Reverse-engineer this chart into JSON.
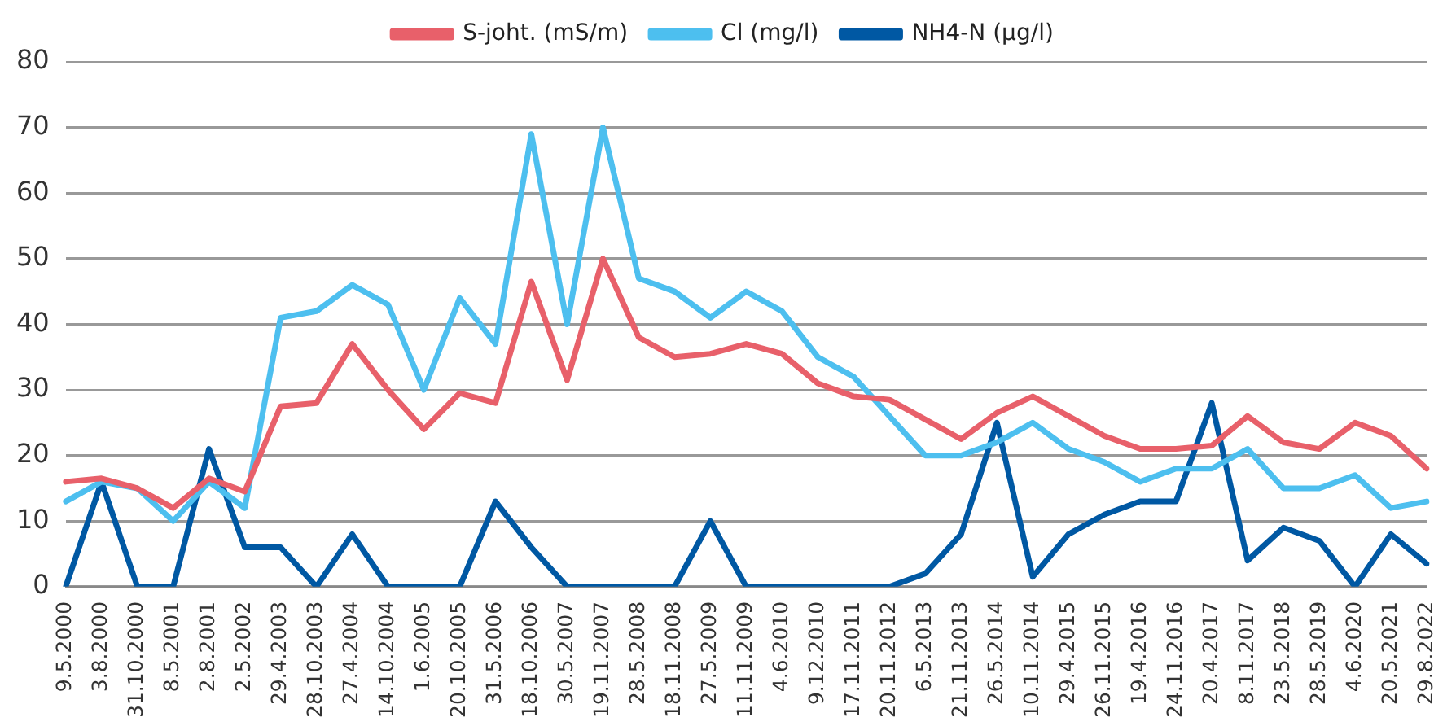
{
  "chart_data": {
    "type": "line",
    "categories": [
      "9.5.2000",
      "3.8.2000",
      "31.10.2000",
      "8.5.2001",
      "2.8.2001",
      "2.5.2002",
      "29.4.2003",
      "28.10.2003",
      "27.4.2004",
      "14.10.2004",
      "1.6.2005",
      "20.10.2005",
      "31.5.2006",
      "18.10.2006",
      "30.5.2007",
      "19.11.2007",
      "28.5.2008",
      "18.11.2008",
      "27.5.2009",
      "11.11.2009",
      "4.6.2010",
      "9.12.2010",
      "17.11.2011",
      "20.11.2012",
      "6.5.2013",
      "21.11.2013",
      "26.5.2014",
      "10.11.2014",
      "29.4.2015",
      "26.11.2015",
      "19.4.2016",
      "24.11.2016",
      "20.4.2017",
      "8.11.2017",
      "23.5.2018",
      "28.5.2019",
      "4.6.2020",
      "20.5.2021",
      "29.8.2022"
    ],
    "series": [
      {
        "name": "S-joht. (mS/m)",
        "color": "#e8606a",
        "values": [
          16,
          16.5,
          15,
          12,
          16.5,
          14.5,
          27.5,
          28,
          37,
          30,
          24,
          29.5,
          28,
          46.5,
          31.5,
          50,
          38,
          35,
          35.5,
          37,
          35.5,
          31,
          29,
          28.5,
          25.5,
          22.5,
          26.5,
          29,
          26,
          23,
          21,
          21,
          21.5,
          26,
          22,
          21,
          25,
          23,
          18
        ]
      },
      {
        "name": "Cl (mg/l)",
        "color": "#4dbfef",
        "values": [
          13,
          16,
          15,
          10,
          16,
          12,
          41,
          42,
          46,
          43,
          30,
          44,
          37,
          69,
          40,
          70,
          47,
          45,
          41,
          45,
          42,
          35,
          32,
          26,
          20,
          20,
          22,
          25,
          21,
          19,
          16,
          18,
          18,
          21,
          15,
          15,
          17,
          12,
          13
        ]
      },
      {
        "name": "NH4-N (µg/l)",
        "color": "#0058a3",
        "values": [
          0,
          16,
          0,
          0,
          21,
          6,
          6,
          0,
          8,
          0,
          0,
          0,
          13,
          6,
          0,
          0,
          0,
          0,
          10,
          0,
          0,
          0,
          0,
          0,
          2,
          8,
          25,
          1.5,
          8,
          11,
          13,
          13,
          28,
          4,
          9,
          7,
          0,
          8,
          3.5
        ]
      }
    ],
    "ylim": [
      0,
      80
    ],
    "yticks": [
      0,
      10,
      20,
      30,
      40,
      50,
      60,
      70,
      80
    ],
    "grid": "y",
    "legend": "top",
    "marker": "none",
    "line_style": "solid"
  }
}
